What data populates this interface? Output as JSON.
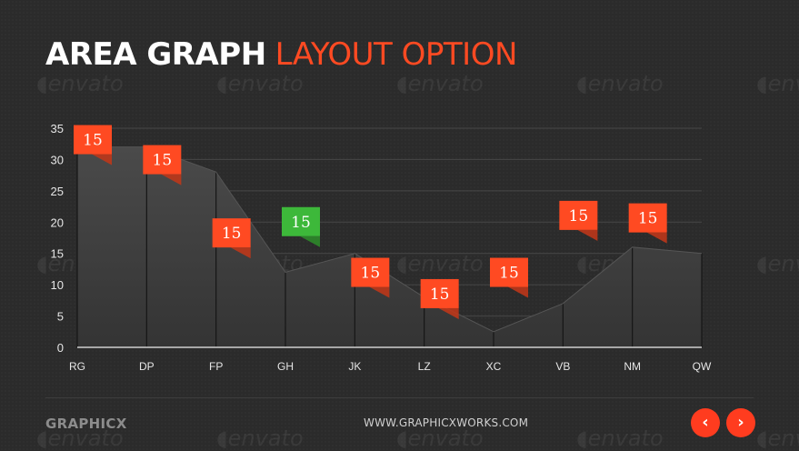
{
  "slide": {
    "title_bold": "AREA GRAPH",
    "title_accent": "LAYOUT OPTION",
    "brand": "GRAPHICX",
    "url": "WWW.GRAPHICXWORKS.COM",
    "watermark_text": "envato",
    "nav": {
      "prev_icon": "chevron-left-icon",
      "next_icon": "chevron-right-icon",
      "prev_glyph": "‹",
      "next_glyph": "›"
    }
  },
  "colors": {
    "background": "#2b2b2b",
    "accent": "#ff4a22",
    "flag_default": "#ff4a22",
    "flag_highlight": "#3db83a",
    "area_fill_top": "#4a4a4a",
    "area_fill_bottom": "#343434"
  },
  "chart_data": {
    "type": "area",
    "title": "",
    "xlabel": "",
    "ylabel": "",
    "categories": [
      "RG",
      "DP",
      "FP",
      "GH",
      "JK",
      "LZ",
      "XC",
      "VB",
      "NM",
      "QW"
    ],
    "series": [
      {
        "values": [
          32,
          32,
          28,
          12,
          15,
          8,
          2.5,
          7,
          16,
          15
        ]
      }
    ],
    "ylim": [
      0,
      35
    ],
    "yticks": [
      0,
      5,
      10,
      15,
      20,
      25,
      30,
      35
    ],
    "grid": true,
    "annotations": [
      {
        "label": "15",
        "value": 35.5,
        "x_index": 0.5,
        "color": "orange"
      },
      {
        "label": "15",
        "value": 32.3,
        "x_index": 1.5,
        "color": "orange"
      },
      {
        "label": "15",
        "value": 20.6,
        "x_index": 2.5,
        "color": "orange"
      },
      {
        "label": "15",
        "value": 22.4,
        "x_index": 3.5,
        "color": "green"
      },
      {
        "label": "15",
        "value": 14.3,
        "x_index": 4.5,
        "color": "orange"
      },
      {
        "label": "15",
        "value": 10.9,
        "x_index": 5.5,
        "color": "orange"
      },
      {
        "label": "15",
        "value": 14.3,
        "x_index": 6.5,
        "color": "orange"
      },
      {
        "label": "15",
        "value": 23.4,
        "x_index": 7.5,
        "color": "orange"
      },
      {
        "label": "15",
        "value": 23.0,
        "x_index": 8.5,
        "color": "orange"
      }
    ]
  }
}
